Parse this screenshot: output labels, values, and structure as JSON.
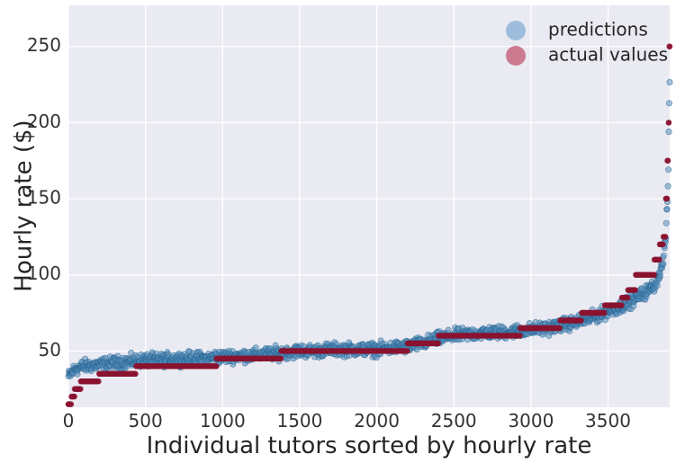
{
  "chart_data": {
    "type": "scatter",
    "title": "",
    "xlabel": "Individual tutors sorted by hourly rate",
    "ylabel": "Hourly rate ($)",
    "xlim": [
      0,
      3900
    ],
    "ylim": [
      13,
      277
    ],
    "x_ticks": [
      0,
      500,
      1000,
      1500,
      2000,
      2500,
      3000,
      3500
    ],
    "y_ticks": [
      50,
      100,
      150,
      200,
      250
    ],
    "grid": true,
    "legend_position": "top-right",
    "colors": {
      "background": "#eaeaf2",
      "grid": "#ffffff",
      "predictions": "#5a8fbd",
      "predictions_edge": "#1f5f8b",
      "actual_values": "#8b1330",
      "legend_predictions": "#9ebcdb",
      "legend_actual": "#cc7a8f"
    },
    "series": [
      {
        "name": "predictions",
        "values": [
          [
            0,
            33
          ],
          [
            40,
            38
          ],
          [
            100,
            40
          ],
          [
            200,
            41
          ],
          [
            300,
            42
          ],
          [
            400,
            43
          ],
          [
            500,
            44
          ],
          [
            600,
            44
          ],
          [
            700,
            45
          ],
          [
            800,
            45
          ],
          [
            900,
            45
          ],
          [
            950,
            46
          ],
          [
            1000,
            46
          ],
          [
            1100,
            47
          ],
          [
            1200,
            47
          ],
          [
            1300,
            48
          ],
          [
            1400,
            49
          ],
          [
            1500,
            50
          ],
          [
            1600,
            50
          ],
          [
            1700,
            51
          ],
          [
            1800,
            51
          ],
          [
            1900,
            51
          ],
          [
            2000,
            51
          ],
          [
            2100,
            52
          ],
          [
            2200,
            53
          ],
          [
            2300,
            55
          ],
          [
            2400,
            58
          ],
          [
            2500,
            60
          ],
          [
            2600,
            61
          ],
          [
            2700,
            62
          ],
          [
            2800,
            62
          ],
          [
            2900,
            63
          ],
          [
            3000,
            64
          ],
          [
            3100,
            65
          ],
          [
            3200,
            67
          ],
          [
            3300,
            69
          ],
          [
            3400,
            72
          ],
          [
            3500,
            76
          ],
          [
            3600,
            80
          ],
          [
            3700,
            86
          ],
          [
            3750,
            89
          ],
          [
            3800,
            93
          ],
          [
            3850,
            105
          ],
          [
            3875,
            125
          ],
          [
            3890,
            160
          ],
          [
            3900,
            228
          ]
        ]
      },
      {
        "name": "actual values",
        "values": [
          [
            0,
            15
          ],
          [
            20,
            20
          ],
          [
            40,
            25
          ],
          [
            80,
            30
          ],
          [
            200,
            35
          ],
          [
            440,
            40
          ],
          [
            960,
            45
          ],
          [
            1380,
            50
          ],
          [
            2200,
            55
          ],
          [
            2400,
            60
          ],
          [
            2930,
            65
          ],
          [
            3190,
            70
          ],
          [
            3330,
            75
          ],
          [
            3480,
            80
          ],
          [
            3590,
            85
          ],
          [
            3630,
            90
          ],
          [
            3680,
            100
          ],
          [
            3800,
            110
          ],
          [
            3835,
            120
          ],
          [
            3860,
            125
          ],
          [
            3875,
            150
          ],
          [
            3885,
            175
          ],
          [
            3893,
            200
          ],
          [
            3898,
            250
          ]
        ]
      }
    ]
  }
}
